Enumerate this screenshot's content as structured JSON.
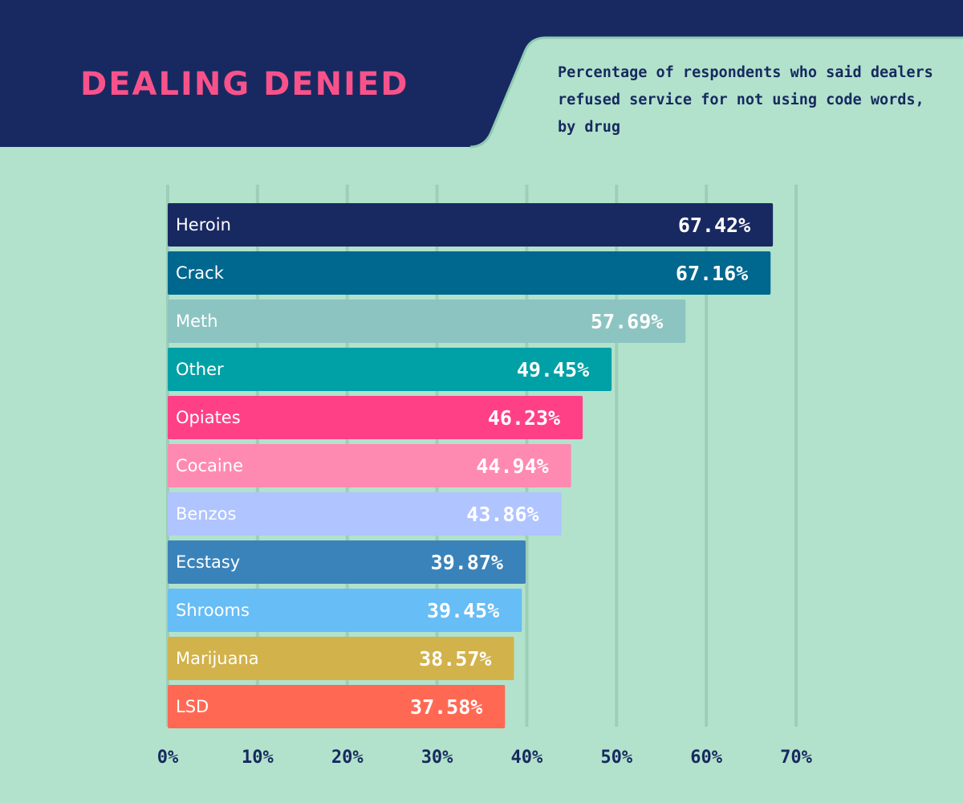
{
  "header": {
    "title": "DEALING DENIED",
    "subtitle": "Percentage of respondents who said dealers refused service for not using code words, by drug"
  },
  "colors": {
    "background": "#b2e2cc",
    "header": "#182961",
    "title": "#f9528a",
    "gridline": "#9dcfb8",
    "axis_text": "#17295f"
  },
  "chart_data": {
    "type": "bar",
    "orientation": "horizontal",
    "title": "DEALING DENIED",
    "subtitle": "Percentage of respondents who said dealers refused service for not using code words, by drug",
    "xlabel": "",
    "ylabel": "",
    "xlim": [
      0,
      70
    ],
    "grid": true,
    "categories": [
      "Heroin",
      "Crack",
      "Meth",
      "Other",
      "Opiates",
      "Cocaine",
      "Benzos",
      "Ecstasy",
      "Shrooms",
      "Marijuana",
      "LSD"
    ],
    "values": [
      67.42,
      67.16,
      57.69,
      49.45,
      46.23,
      44.94,
      43.86,
      39.87,
      39.45,
      38.57,
      37.58
    ],
    "value_labels": [
      "67.42%",
      "67.16%",
      "57.69%",
      "49.45%",
      "46.23%",
      "44.94%",
      "43.86%",
      "39.87%",
      "39.45%",
      "38.57%",
      "37.58%"
    ],
    "bar_colors": [
      "#182961",
      "#00678f",
      "#8cc4c1",
      "#00a1a6",
      "#ff4087",
      "#ff8ab1",
      "#b0c4ff",
      "#3a83ba",
      "#67bdf5",
      "#d2b24a",
      "#ff6954"
    ],
    "ticks": [
      0,
      10,
      20,
      30,
      40,
      50,
      60,
      70
    ],
    "tick_labels": [
      "0%",
      "10%",
      "20%",
      "30%",
      "40%",
      "50%",
      "60%",
      "70%"
    ]
  }
}
